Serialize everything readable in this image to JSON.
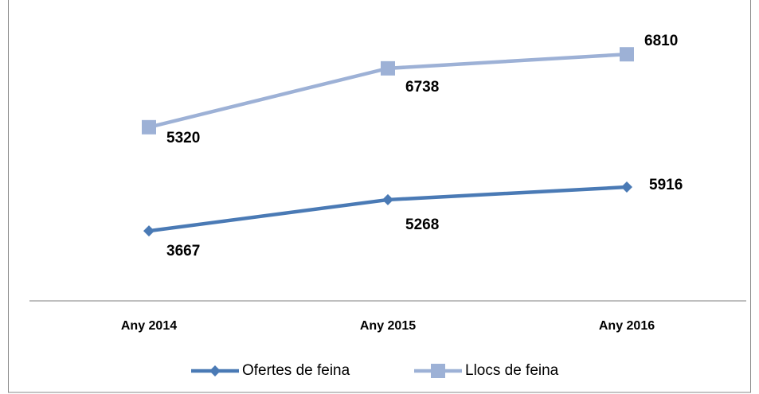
{
  "chart_data": {
    "type": "line",
    "stacked": true,
    "categories": [
      "Any 2014",
      "Any 2015",
      "Any 2016"
    ],
    "series": [
      {
        "name": "Ofertes de feina",
        "color": "#4a7ab5",
        "marker": "diamond",
        "values": [
          3667,
          5268,
          5916
        ]
      },
      {
        "name": "Llocs de feina",
        "color": "#9db1d6",
        "marker": "square",
        "values": [
          5320,
          6738,
          6810
        ]
      }
    ],
    "ylim": [
      0,
      14000
    ],
    "legend": "bottom"
  }
}
